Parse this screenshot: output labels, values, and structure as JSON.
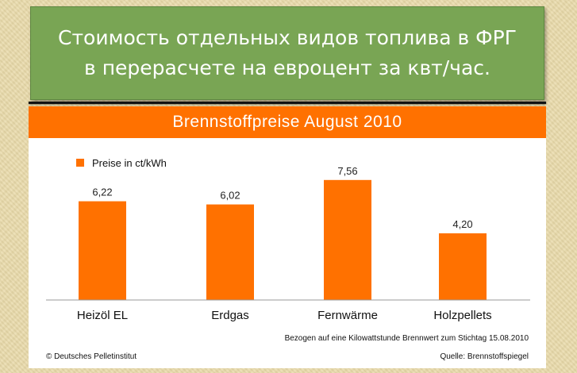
{
  "banner": {
    "line1": "Стоимость отдельных видов топлива в ФРГ",
    "line2": "в перерасчете на евроцент за квт/час."
  },
  "chart_data": {
    "type": "bar",
    "title": "Brennstoffpreise August 2010",
    "categories": [
      "Heizöl EL",
      "Erdgas",
      "Fernwärme",
      "Holzpellets"
    ],
    "series": [
      {
        "name": "Preise in ct/kWh",
        "values": [
          6.22,
          6.02,
          7.56,
          4.2
        ]
      }
    ],
    "value_labels": [
      "6,22",
      "6,02",
      "7,56",
      "4,20"
    ],
    "ylim": [
      0,
      8.2
    ],
    "grid": false,
    "legend": "top-left",
    "bar_color": "#ff7100",
    "footnote": "Bezogen auf eine Kilowattstunde Brennwert zum Stichtag 15.08.2010",
    "copyright": "© Deutsches Pelletinstitut",
    "source": "Quelle: Brennstoffspiegel"
  },
  "colors": {
    "banner_bg": "#79a554",
    "accent": "#ff7100",
    "axis": "#999999"
  }
}
